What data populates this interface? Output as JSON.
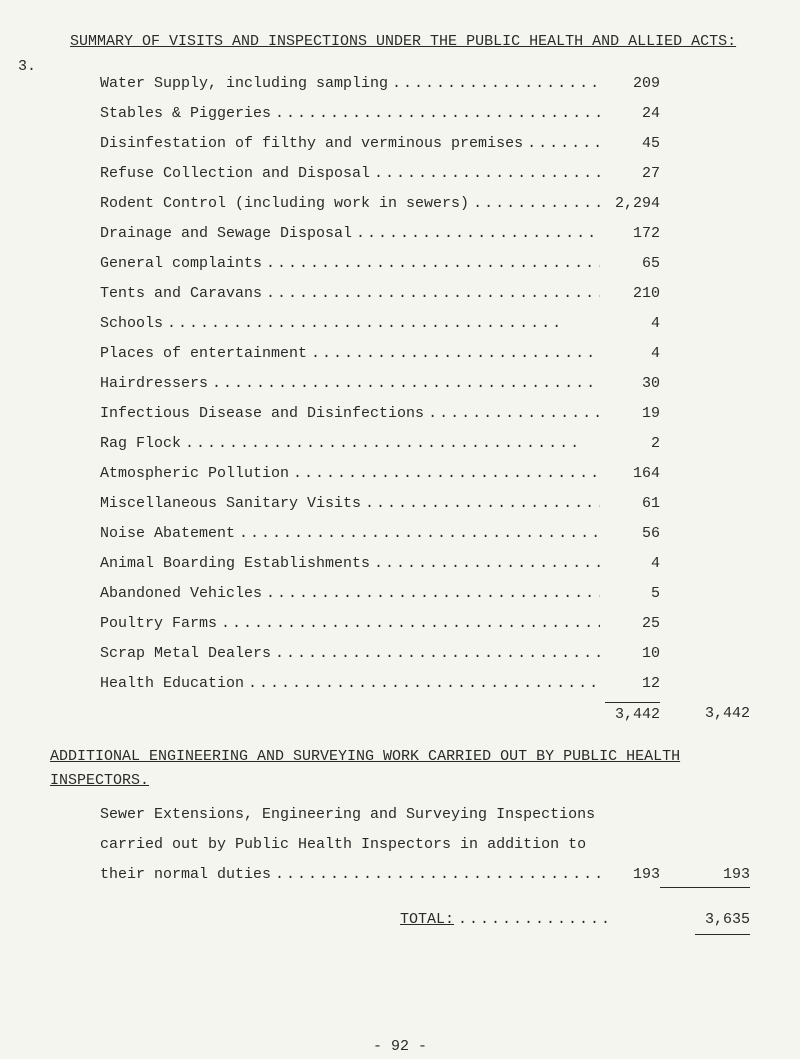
{
  "section_number": "3.",
  "heading": "SUMMARY OF VISITS AND INSPECTIONS UNDER THE PUBLIC HEALTH AND ALLIED ACTS:",
  "items": [
    {
      "label": "Water Supply, including sampling",
      "value": "209"
    },
    {
      "label": "Stables & Piggeries",
      "value": "24"
    },
    {
      "label": "Disinfestation of filthy and verminous premises",
      "value": "45"
    },
    {
      "label": "Refuse Collection and Disposal",
      "value": "27"
    },
    {
      "label": "Rodent Control (including work in sewers)",
      "value": "2,294"
    },
    {
      "label": "Drainage and Sewage Disposal",
      "value": "172"
    },
    {
      "label": "General complaints",
      "value": "65"
    },
    {
      "label": "Tents and Caravans",
      "value": "210"
    },
    {
      "label": "Schools",
      "value": "4"
    },
    {
      "label": "Places of entertainment",
      "value": "4"
    },
    {
      "label": "Hairdressers",
      "value": "30"
    },
    {
      "label": "Infectious Disease and Disinfections",
      "value": "19"
    },
    {
      "label": "Rag Flock",
      "value": "2"
    },
    {
      "label": "Atmospheric Pollution",
      "value": "164"
    },
    {
      "label": "Miscellaneous Sanitary Visits",
      "value": "61"
    },
    {
      "label": "Noise Abatement",
      "value": "56"
    },
    {
      "label": "Animal Boarding Establishments",
      "value": "4"
    },
    {
      "label": "Abandoned Vehicles",
      "value": "5"
    },
    {
      "label": "Poultry Farms",
      "value": "25"
    },
    {
      "label": "Scrap Metal Dealers",
      "value": "10"
    },
    {
      "label": "Health Education",
      "value": "12"
    }
  ],
  "subtotal_col1": "3,442",
  "subtotal_col2": "3,442",
  "sub_heading": "ADDITIONAL ENGINEERING AND SURVEYING WORK CARRIED OUT BY PUBLIC HEALTH INSPECTORS.",
  "note_line1": "Sewer Extensions, Engineering and Surveying Inspections",
  "note_line2": "carried out by Public Health Inspectors in addition to",
  "note_line3": "their normal duties",
  "note_val1": "193",
  "note_val2": "193",
  "total_label": "TOTAL:",
  "total_value": "3,635",
  "page_number": "- 92 -",
  "dots": "...................................."
}
